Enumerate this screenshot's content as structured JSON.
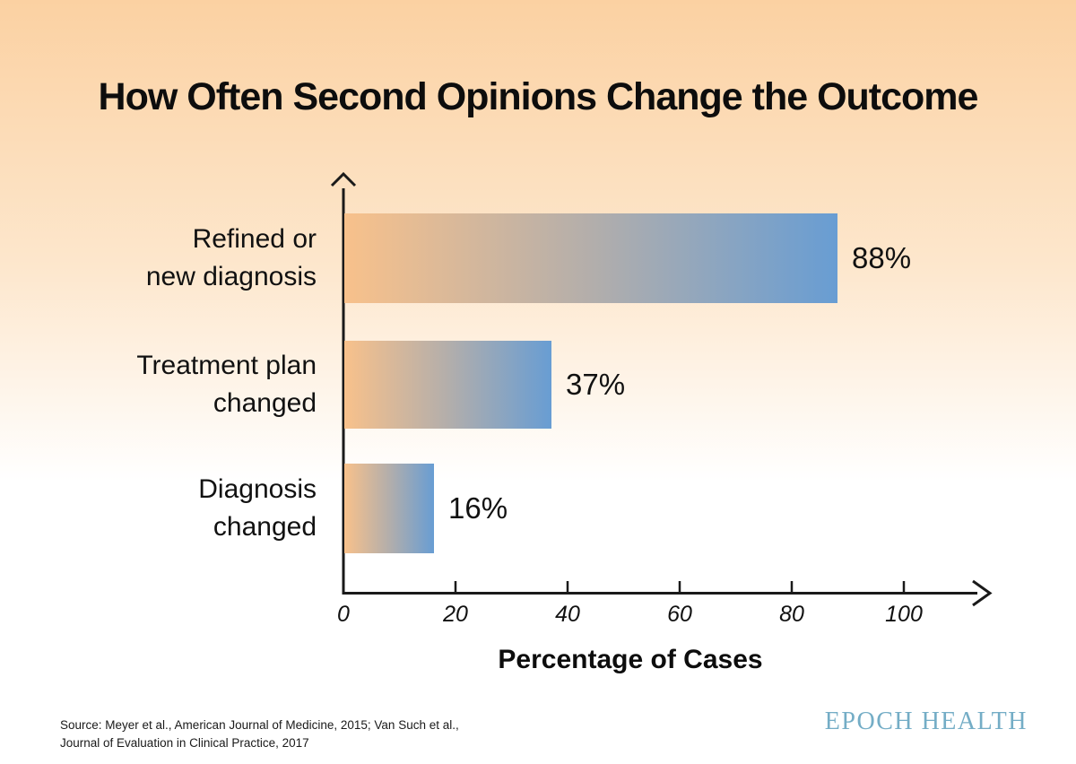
{
  "title": "How Often Second Opinions Change the Outcome",
  "chart_data": {
    "type": "bar",
    "orientation": "horizontal",
    "title": "How Often Second Opinions Change the Outcome",
    "categories": [
      "Refined or new diagnosis",
      "Treatment plan changed",
      "Diagnosis changed"
    ],
    "values": [
      88,
      37,
      16
    ],
    "value_labels": [
      "88%",
      "37%",
      "16%"
    ],
    "xlabel": "Percentage of Cases",
    "ylabel": "",
    "xlim": [
      0,
      100
    ],
    "x_ticks": [
      0,
      20,
      40,
      60,
      80,
      100
    ],
    "grid": false,
    "legend": "none",
    "bar_gradient_start": "#f8c18b",
    "bar_gradient_end": "#689dd3"
  },
  "rows": [
    {
      "label_line1": "Refined or",
      "label_line2": "new diagnosis",
      "value_label": "88%"
    },
    {
      "label_line1": "Treatment plan",
      "label_line2": "changed",
      "value_label": "37%"
    },
    {
      "label_line1": "Diagnosis",
      "label_line2": "changed",
      "value_label": "16%"
    }
  ],
  "x_axis": {
    "title": "Percentage of Cases",
    "tick_labels": [
      "0",
      "20",
      "40",
      "60",
      "80",
      "100"
    ]
  },
  "source": {
    "line1": "Source: Meyer et al., American Journal of Medicine, 2015; Van Such et al.,",
    "line2": "Journal of Evaluation in Clinical Practice, 2017"
  },
  "logo": {
    "text": "EPOCH HEALTH"
  },
  "colors": {
    "background_top": "#fbd1a2",
    "background_bottom": "#ffffff",
    "axis": "#1a1a1a",
    "text": "#111111",
    "logo": "#74adc6"
  }
}
